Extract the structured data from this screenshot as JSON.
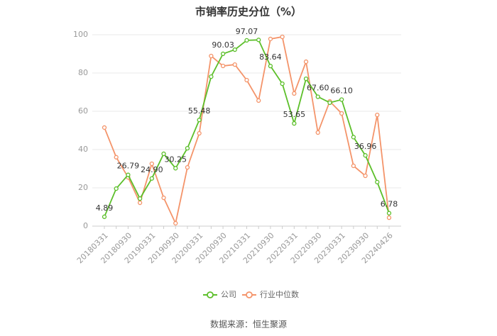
{
  "chart_data": {
    "type": "line",
    "title": "市销率历史分位（%）",
    "categories": [
      "20180331",
      null,
      "20180930",
      null,
      "20190331",
      null,
      "20190930",
      null,
      "20200331",
      null,
      "20200930",
      null,
      "20210331",
      null,
      "20210930",
      null,
      "20220331",
      null,
      "20220930",
      null,
      "20230331",
      null,
      "20230930",
      null,
      "20240426"
    ],
    "series": [
      {
        "name": "公司",
        "color": "#5cbf2a",
        "values": [
          4.89,
          19.6,
          26.79,
          14.4,
          24.9,
          37.8,
          30.25,
          40.7,
          55.48,
          78.1,
          90.03,
          92.2,
          97.07,
          97.3,
          83.64,
          74.4,
          53.65,
          77,
          67.6,
          64.5,
          66.1,
          46.5,
          36.96,
          23,
          6.78
        ],
        "value_labels": [
          "4.89",
          null,
          "26.79",
          null,
          "24.90",
          null,
          "30.25",
          null,
          "55.48",
          null,
          "90.03",
          null,
          "97.07",
          null,
          "83.64",
          null,
          "53.65",
          null,
          "67.60",
          null,
          "66.10",
          null,
          "36.96",
          null,
          "6.78"
        ]
      },
      {
        "name": "行业中位数",
        "color": "#f4946a",
        "values": [
          51.5,
          36,
          25.5,
          12.2,
          32.6,
          14.8,
          1.5,
          30.7,
          48.5,
          88.9,
          83.7,
          84.4,
          76.3,
          65.6,
          97.8,
          98.9,
          69.3,
          85.9,
          48.9,
          65.2,
          58.9,
          31.5,
          26.3,
          58.1,
          4.4
        ]
      }
    ],
    "ylim": [
      0,
      100
    ],
    "yticks": [
      0,
      20,
      40,
      60,
      80,
      100
    ],
    "grid": true,
    "source": "数据来源：恒生聚源"
  }
}
